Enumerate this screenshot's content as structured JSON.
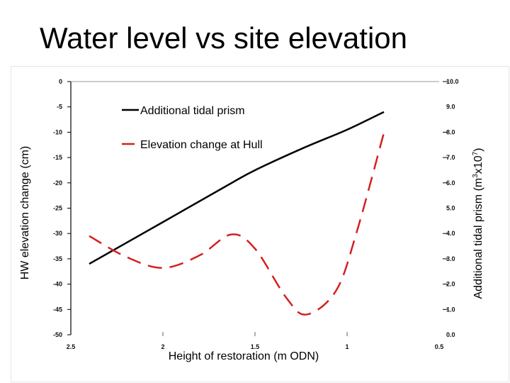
{
  "title": "Water level vs site elevation",
  "chart_data": {
    "type": "line",
    "xlabel": "Height of restoration (m ODN)",
    "ylabel_left": "HW elevation change (cm)",
    "ylabel_right_parts": [
      "Additional tidal prism (m",
      "3",
      "x10",
      "7",
      ")"
    ],
    "x_ticks": [
      "2.5",
      "2",
      "1.5",
      "1",
      "0.5"
    ],
    "x_range": [
      2.5,
      0.5
    ],
    "x_reversed": true,
    "y_left_ticks": [
      "0",
      "-5",
      "-10",
      "-15",
      "-20",
      "-25",
      "-30",
      "-35",
      "-40",
      "-45",
      "-50"
    ],
    "y_left_range": [
      -50,
      0
    ],
    "y_right_ticks": [
      "10.0",
      "9.0",
      "8.0",
      "7.0",
      "6.0",
      "5.0",
      "4.0",
      "3.0",
      "2.0",
      "1.0",
      "0.0"
    ],
    "y_right_range": [
      0,
      10
    ],
    "legend_position": "top-left",
    "grid": false,
    "series": [
      {
        "name": "Additional tidal prism",
        "axis": "right",
        "color": "#000000",
        "style": "solid",
        "x": [
          2.4,
          2.0,
          1.65,
          1.5,
          1.23,
          1.0,
          0.8
        ],
        "y": [
          2.8,
          4.45,
          5.9,
          6.5,
          7.4,
          8.1,
          8.8
        ]
      },
      {
        "name": "Elevation change at Hull",
        "axis": "left",
        "color": "#d42020",
        "style": "dashed",
        "x": [
          2.4,
          2.2,
          2.0,
          1.8,
          1.63,
          1.5,
          1.33,
          1.22,
          1.06,
          0.95,
          0.8
        ],
        "y": [
          -30.5,
          -34.6,
          -36.8,
          -34.3,
          -30.2,
          -33,
          -42.7,
          -46,
          -41.3,
          -30,
          -10.1
        ]
      }
    ]
  }
}
